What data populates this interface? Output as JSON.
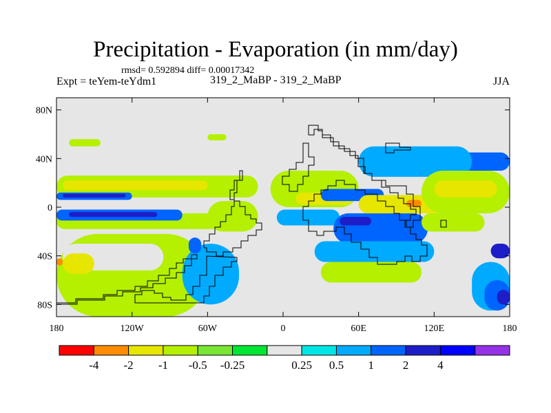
{
  "title": "Precipitation - Evaporation (in mm/day)",
  "stats": {
    "rmsd_line": "rmsd= 0.592894 diff= 0.00017342"
  },
  "left_label": "Expt = teYem-teYdm1",
  "center_label": "319_2_MaBP - 319_2_MaBP",
  "right_label": "JJA",
  "map": {
    "background_color": "#e6e6e6",
    "lat_ticks": [
      {
        "value": 80,
        "label": "80N"
      },
      {
        "value": 40,
        "label": "40N"
      },
      {
        "value": 0,
        "label": "0"
      },
      {
        "value": -40,
        "label": "40S"
      },
      {
        "value": -80,
        "label": "80S"
      }
    ],
    "lon_ticks": [
      {
        "value": -180,
        "label": "180"
      },
      {
        "value": -120,
        "label": "120W"
      },
      {
        "value": -60,
        "label": "60W"
      },
      {
        "value": 0,
        "label": "0"
      },
      {
        "value": 60,
        "label": "60E"
      },
      {
        "value": 120,
        "label": "120E"
      },
      {
        "value": 180,
        "label": "180"
      }
    ],
    "features": [
      {
        "name": "band-north-green",
        "level": -0.5,
        "lon": [
          -180,
          -20
        ],
        "lat": [
          8,
          26
        ]
      },
      {
        "name": "band-north-yellow",
        "level": -1,
        "lon": [
          -175,
          -60
        ],
        "lat": [
          14,
          22
        ]
      },
      {
        "name": "band-north-blue",
        "level": 1,
        "lon": [
          -180,
          -120
        ],
        "lat": [
          6,
          12
        ]
      },
      {
        "name": "band-north-darkblue",
        "level": 2,
        "lon": [
          -175,
          -125
        ],
        "lat": [
          8,
          11
        ]
      },
      {
        "name": "band-south-green",
        "level": -0.5,
        "lon": [
          -180,
          -50
        ],
        "lat": [
          -18,
          -5
        ]
      },
      {
        "name": "band-south-blue",
        "level": 1,
        "lon": [
          -180,
          -80
        ],
        "lat": [
          -11,
          -2
        ]
      },
      {
        "name": "band-south-darkblue",
        "level": 2,
        "lon": [
          -170,
          -100
        ],
        "lat": [
          -8,
          -4
        ]
      },
      {
        "name": "south-pacific-green",
        "level": -0.5,
        "lon": [
          -180,
          -60
        ],
        "lat": [
          -90,
          -22
        ]
      },
      {
        "name": "south-pacific-hole",
        "level": 0,
        "lon": [
          -175,
          -95
        ],
        "lat": [
          -52,
          -30
        ]
      },
      {
        "name": "south-pacific-yellow",
        "level": -1,
        "lon": [
          -175,
          -150
        ],
        "lat": [
          -55,
          -38
        ]
      },
      {
        "name": "south-pacific-orange",
        "level": -2,
        "lon": [
          -180,
          -175
        ],
        "lat": [
          -48,
          -42
        ]
      },
      {
        "name": "south-america-cyan",
        "level": 0.5,
        "lon": [
          -80,
          -35
        ],
        "lat": [
          -80,
          -30
        ]
      },
      {
        "name": "south-america-blue",
        "level": 1,
        "lon": [
          -75,
          -65
        ],
        "lat": [
          -38,
          -25
        ]
      },
      {
        "name": "atlantic-green",
        "level": -0.5,
        "lon": [
          -60,
          -20
        ],
        "lat": [
          -20,
          5
        ]
      },
      {
        "name": "africa-green",
        "level": -0.5,
        "lon": [
          -10,
          60
        ],
        "lat": [
          0,
          30
        ]
      },
      {
        "name": "africa-yellow",
        "level": -1,
        "lon": [
          10,
          55
        ],
        "lat": [
          2,
          12
        ]
      },
      {
        "name": "africa-cyan",
        "level": 0.5,
        "lon": [
          -5,
          45
        ],
        "lat": [
          -15,
          -2
        ]
      },
      {
        "name": "indian-ocean-blue",
        "level": 1,
        "lon": [
          40,
          115
        ],
        "lat": [
          -30,
          -5
        ]
      },
      {
        "name": "indian-ocean-darkblue",
        "level": 2,
        "lon": [
          45,
          70
        ],
        "lat": [
          -15,
          -8
        ]
      },
      {
        "name": "indian-ocean-cyan",
        "level": 0.5,
        "lon": [
          25,
          120
        ],
        "lat": [
          -45,
          -28
        ]
      },
      {
        "name": "indian-ocean-green",
        "level": -0.5,
        "lon": [
          30,
          110
        ],
        "lat": [
          -62,
          -45
        ]
      },
      {
        "name": "asia-blue",
        "level": 1,
        "lon": [
          30,
          80
        ],
        "lat": [
          5,
          15
        ]
      },
      {
        "name": "asia-yellow",
        "level": -1,
        "lon": [
          60,
          130
        ],
        "lat": [
          -5,
          10
        ]
      },
      {
        "name": "asia-orange",
        "level": -2,
        "lon": [
          98,
          110
        ],
        "lat": [
          0,
          6
        ]
      },
      {
        "name": "north-asia-blue",
        "level": 1,
        "lon": [
          60,
          180
        ],
        "lat": [
          30,
          45
        ]
      },
      {
        "name": "north-asia-cyan",
        "level": 0.5,
        "lon": [
          60,
          150
        ],
        "lat": [
          25,
          50
        ]
      },
      {
        "name": "pacific-north-green",
        "level": -0.5,
        "lon": [
          110,
          180
        ],
        "lat": [
          -5,
          30
        ]
      },
      {
        "name": "pacific-north-yellow",
        "level": -1,
        "lon": [
          120,
          170
        ],
        "lat": [
          8,
          22
        ]
      },
      {
        "name": "pacific-south-green",
        "level": -0.5,
        "lon": [
          110,
          160
        ],
        "lat": [
          -20,
          -5
        ]
      },
      {
        "name": "southeast-pacific-darkblue",
        "level": 2,
        "lon": [
          165,
          180
        ],
        "lat": [
          -42,
          -30
        ]
      },
      {
        "name": "southeast-pacific-cyan",
        "level": 0.5,
        "lon": [
          150,
          180
        ],
        "lat": [
          -85,
          -45
        ]
      },
      {
        "name": "southeast-pacific-blue",
        "level": 1,
        "lon": [
          160,
          180
        ],
        "lat": [
          -85,
          -60
        ]
      },
      {
        "name": "southeast-pacific-darkblue-2",
        "level": 2,
        "lon": [
          170,
          180
        ],
        "lat": [
          -80,
          -68
        ]
      },
      {
        "name": "north-pacific-green",
        "level": -0.5,
        "lon": [
          -170,
          -145
        ],
        "lat": [
          50,
          56
        ]
      },
      {
        "name": "north-atlantic-green",
        "level": -0.5,
        "lon": [
          -60,
          -45
        ],
        "lat": [
          55,
          60
        ]
      }
    ]
  },
  "colorbar": {
    "colors": [
      "#ff0000",
      "#ff8c00",
      "#e6e600",
      "#b4f000",
      "#78e632",
      "#00e632",
      "#e6e6e6",
      "#00e6e6",
      "#00aaff",
      "#0064ff",
      "#1e1ec8",
      "#0000ff",
      "#9632e6"
    ],
    "labels": [
      "-4",
      "-2",
      "-1",
      "-0.5",
      "-0.25",
      "0.25",
      "0.5",
      "1",
      "2",
      "4"
    ]
  }
}
